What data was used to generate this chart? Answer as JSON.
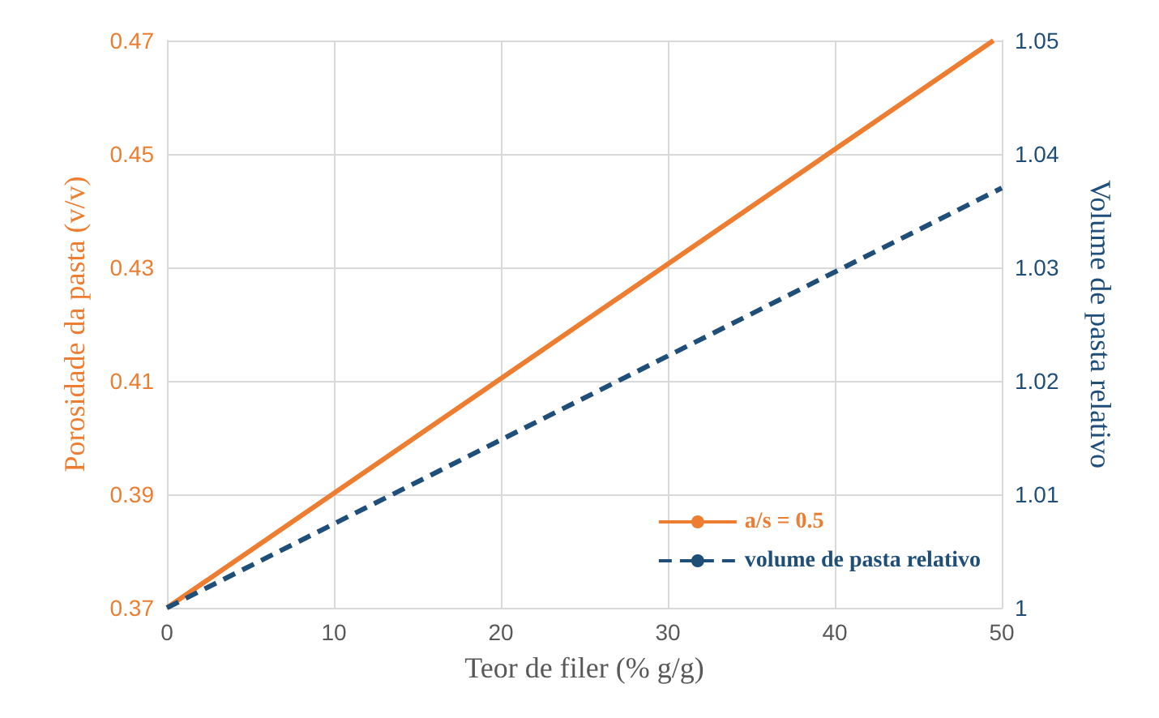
{
  "chart_data": {
    "type": "line",
    "xlabel": "Teor de filer (% g/g)",
    "ylabel": "Porosidade da pasta (v/v)",
    "y2label": "Volume de pasta relativo",
    "xlim": [
      0,
      50
    ],
    "xticks": [
      0,
      10,
      20,
      30,
      40,
      50
    ],
    "ylim": [
      0.37,
      0.47
    ],
    "yticks": [
      {
        "value": 0.37,
        "label": "0.37"
      },
      {
        "value": 0.39,
        "label": "0.39"
      },
      {
        "value": 0.41,
        "label": "0.41"
      },
      {
        "value": 0.43,
        "label": "0.43"
      },
      {
        "value": 0.45,
        "label": "0.45"
      },
      {
        "value": 0.47,
        "label": "0.47"
      }
    ],
    "y2lim": [
      1,
      1.05
    ],
    "y2ticks": [
      1,
      1.01,
      1.02,
      1.03,
      1.04,
      1.05
    ],
    "grid": true,
    "legend": "bottom right",
    "marker": "none",
    "series": [
      {
        "name": "a/s = 0.5",
        "color": "#ed7d31",
        "x": [
          0,
          49.5
        ],
        "values": [
          0.37,
          0.47
        ],
        "line_style": "solid"
      },
      {
        "name": "volume de pasta relativo",
        "color": "#1f4e79",
        "x": [
          0,
          50
        ],
        "values": [
          1,
          1.037
        ],
        "line_style": "dashed",
        "axis": "y2"
      }
    ]
  }
}
